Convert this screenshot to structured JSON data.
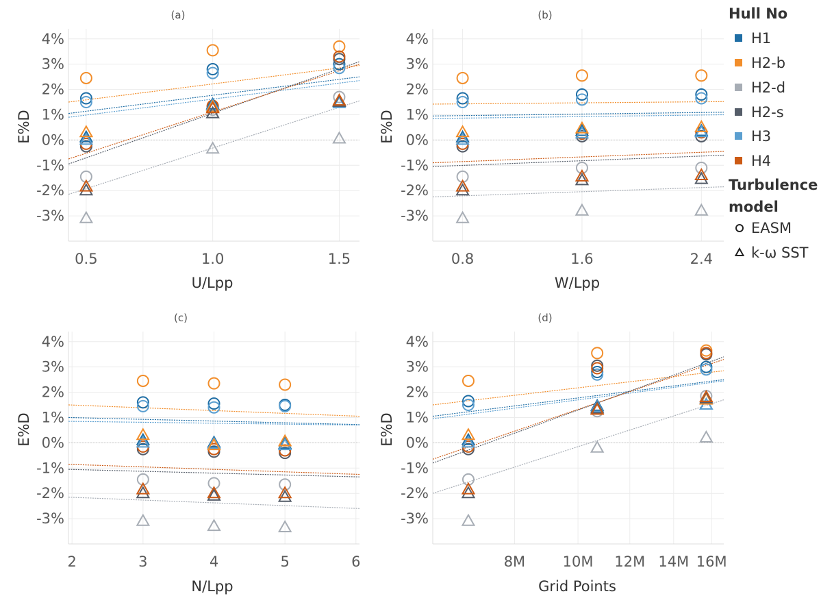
{
  "legend": {
    "hull_title": "Hull No",
    "turbulence_title_lines": [
      "Turbulence",
      "model"
    ],
    "hulls": [
      {
        "name": "H1",
        "color": "#1f6ea5"
      },
      {
        "name": "H2-b",
        "color": "#f28e2b"
      },
      {
        "name": "H2-d",
        "color": "#a7adb5"
      },
      {
        "name": "H2-s",
        "color": "#555d69"
      },
      {
        "name": "H3",
        "color": "#5b9fd0"
      },
      {
        "name": "H4",
        "color": "#cc5a14"
      }
    ],
    "models": [
      {
        "name": "EASM",
        "marker": "circle"
      },
      {
        "name": "k-ω SST",
        "marker": "triangle"
      }
    ]
  },
  "chart_data": [
    {
      "panel": "(a)",
      "type": "scatter",
      "xlabel": "U/Lpp",
      "ylabel": "E%D",
      "x_ticks": [
        0.5,
        1.0,
        1.5
      ],
      "x_tick_labels": [
        "0.5",
        "1.0",
        "1.5"
      ],
      "xlim": [
        0.43,
        1.58
      ],
      "y_ticks": [
        -3,
        -2,
        -1,
        0,
        1,
        2,
        3,
        4
      ],
      "y_tick_labels": [
        "-3%",
        "-2%",
        "-1%",
        "0%",
        "1%",
        "2%",
        "3%",
        "4%"
      ],
      "ylim": [
        -4,
        4.4
      ],
      "series": [
        {
          "hull": "H1",
          "model": "EASM",
          "x": [
            0.5,
            1.0,
            1.5
          ],
          "y": [
            1.65,
            2.8,
            3.0
          ]
        },
        {
          "hull": "H3",
          "model": "EASM",
          "x": [
            0.5,
            1.0,
            1.5
          ],
          "y": [
            1.5,
            2.65,
            2.85
          ]
        },
        {
          "hull": "H2-b",
          "model": "EASM",
          "x": [
            0.5,
            1.0,
            1.5
          ],
          "y": [
            2.45,
            3.55,
            3.7
          ]
        },
        {
          "hull": "H2-d",
          "model": "EASM",
          "x": [
            0.5,
            1.0,
            1.5
          ],
          "y": [
            -1.45,
            1.2,
            1.7
          ]
        },
        {
          "hull": "H2-s",
          "model": "EASM",
          "x": [
            0.5,
            1.0,
            1.5
          ],
          "y": [
            -0.25,
            1.3,
            3.2
          ]
        },
        {
          "hull": "H4",
          "model": "EASM",
          "x": [
            0.5,
            1.0,
            1.5
          ],
          "y": [
            -0.15,
            1.35,
            3.3
          ]
        },
        {
          "hull": "H1",
          "model": "k-ω SST",
          "x": [
            0.5,
            1.0,
            1.5
          ],
          "y": [
            0.1,
            1.4,
            1.5
          ]
        },
        {
          "hull": "H3",
          "model": "k-ω SST",
          "x": [
            0.5,
            1.0,
            1.5
          ],
          "y": [
            0.0,
            1.35,
            1.45
          ]
        },
        {
          "hull": "H2-b",
          "model": "k-ω SST",
          "x": [
            0.5,
            1.0,
            1.5
          ],
          "y": [
            0.3,
            1.3,
            1.55
          ]
        },
        {
          "hull": "H2-d",
          "model": "k-ω SST",
          "x": [
            0.5,
            1.0,
            1.5
          ],
          "y": [
            -3.1,
            -0.35,
            0.05
          ]
        },
        {
          "hull": "H2-s",
          "model": "k-ω SST",
          "x": [
            0.5,
            1.0,
            1.5
          ],
          "y": [
            -2.0,
            1.05,
            1.5
          ]
        },
        {
          "hull": "H4",
          "model": "k-ω SST",
          "x": [
            0.5,
            1.0,
            1.5
          ],
          "y": [
            -1.85,
            1.25,
            1.55
          ]
        }
      ],
      "trend_lines": [
        {
          "hull": "H1",
          "x": [
            0.43,
            1.58
          ],
          "y": [
            1.05,
            2.5
          ]
        },
        {
          "hull": "H3",
          "x": [
            0.43,
            1.58
          ],
          "y": [
            0.9,
            2.35
          ]
        },
        {
          "hull": "H2-b",
          "x": [
            0.43,
            1.58
          ],
          "y": [
            1.5,
            2.95
          ]
        },
        {
          "hull": "H2-d",
          "x": [
            0.43,
            1.58
          ],
          "y": [
            -2.15,
            1.55
          ]
        },
        {
          "hull": "H2-s",
          "x": [
            0.43,
            1.58
          ],
          "y": [
            -0.95,
            3.1
          ]
        },
        {
          "hull": "H4",
          "x": [
            0.43,
            1.58
          ],
          "y": [
            -0.75,
            3.0
          ]
        }
      ]
    },
    {
      "panel": "(b)",
      "type": "scatter",
      "xlabel": "W/Lpp",
      "ylabel": "E%D",
      "x_ticks": [
        0.8,
        1.6,
        2.4
      ],
      "x_tick_labels": [
        "0.8",
        "1.6",
        "2.4"
      ],
      "xlim": [
        0.6,
        2.55
      ],
      "y_ticks": [
        -3,
        -2,
        -1,
        0,
        1,
        2,
        3,
        4
      ],
      "y_tick_labels": [
        "-3%",
        "-2%",
        "-1%",
        "0%",
        "1%",
        "2%",
        "3%",
        "4%"
      ],
      "ylim": [
        -4,
        4.4
      ],
      "series": [
        {
          "hull": "H1",
          "model": "EASM",
          "x": [
            0.8,
            1.6,
            2.4
          ],
          "y": [
            1.65,
            1.8,
            1.8
          ]
        },
        {
          "hull": "H3",
          "model": "EASM",
          "x": [
            0.8,
            1.6,
            2.4
          ],
          "y": [
            1.5,
            1.6,
            1.65
          ]
        },
        {
          "hull": "H2-b",
          "model": "EASM",
          "x": [
            0.8,
            1.6,
            2.4
          ],
          "y": [
            2.45,
            2.55,
            2.55
          ]
        },
        {
          "hull": "H2-d",
          "model": "EASM",
          "x": [
            0.8,
            1.6,
            2.4
          ],
          "y": [
            -1.45,
            -1.1,
            -1.1
          ]
        },
        {
          "hull": "H2-s",
          "model": "EASM",
          "x": [
            0.8,
            1.6,
            2.4
          ],
          "y": [
            -0.25,
            0.15,
            0.15
          ]
        },
        {
          "hull": "H4",
          "model": "EASM",
          "x": [
            0.8,
            1.6,
            2.4
          ],
          "y": [
            -0.15,
            0.25,
            0.3
          ]
        },
        {
          "hull": "H1",
          "model": "k-ω SST",
          "x": [
            0.8,
            1.6,
            2.4
          ],
          "y": [
            0.1,
            0.35,
            0.35
          ]
        },
        {
          "hull": "H3",
          "model": "k-ω SST",
          "x": [
            0.8,
            1.6,
            2.4
          ],
          "y": [
            0.0,
            0.25,
            0.3
          ]
        },
        {
          "hull": "H2-b",
          "model": "k-ω SST",
          "x": [
            0.8,
            1.6,
            2.4
          ],
          "y": [
            0.3,
            0.45,
            0.5
          ]
        },
        {
          "hull": "H2-d",
          "model": "k-ω SST",
          "x": [
            0.8,
            1.6,
            2.4
          ],
          "y": [
            -3.1,
            -2.8,
            -2.8
          ]
        },
        {
          "hull": "H2-s",
          "model": "k-ω SST",
          "x": [
            0.8,
            1.6,
            2.4
          ],
          "y": [
            -2.0,
            -1.6,
            -1.55
          ]
        },
        {
          "hull": "H4",
          "model": "k-ω SST",
          "x": [
            0.8,
            1.6,
            2.4
          ],
          "y": [
            -1.85,
            -1.45,
            -1.4
          ]
        }
      ],
      "trend_lines": [
        {
          "hull": "H1",
          "x": [
            0.6,
            2.55
          ],
          "y": [
            0.95,
            1.1
          ]
        },
        {
          "hull": "H3",
          "x": [
            0.6,
            2.55
          ],
          "y": [
            0.85,
            1.0
          ]
        },
        {
          "hull": "H2-b",
          "x": [
            0.6,
            2.55
          ],
          "y": [
            1.42,
            1.52
          ]
        },
        {
          "hull": "H2-d",
          "x": [
            0.6,
            2.55
          ],
          "y": [
            -2.25,
            -1.85
          ]
        },
        {
          "hull": "H2-s",
          "x": [
            0.6,
            2.55
          ],
          "y": [
            -1.05,
            -0.6
          ]
        },
        {
          "hull": "H4",
          "x": [
            0.6,
            2.55
          ],
          "y": [
            -0.9,
            -0.45
          ]
        }
      ]
    },
    {
      "panel": "(c)",
      "type": "scatter",
      "xlabel": "N/Lpp",
      "ylabel": "E%D",
      "x_ticks": [
        2,
        3,
        4,
        5,
        6
      ],
      "x_tick_labels": [
        "2",
        "3",
        "4",
        "5",
        "6"
      ],
      "xlim": [
        1.95,
        6.05
      ],
      "y_ticks": [
        -3,
        -2,
        -1,
        0,
        1,
        2,
        3,
        4
      ],
      "y_tick_labels": [
        "-3%",
        "-2%",
        "-1%",
        "0%",
        "1%",
        "2%",
        "3%",
        "4%"
      ],
      "ylim": [
        -4,
        4.4
      ],
      "series": [
        {
          "hull": "H1",
          "model": "EASM",
          "x": [
            3,
            4,
            5
          ],
          "y": [
            1.6,
            1.55,
            1.5
          ]
        },
        {
          "hull": "H3",
          "model": "EASM",
          "x": [
            3,
            4,
            5
          ],
          "y": [
            1.45,
            1.4,
            1.45
          ]
        },
        {
          "hull": "H2-b",
          "model": "EASM",
          "x": [
            3,
            4,
            5
          ],
          "y": [
            2.45,
            2.35,
            2.3
          ]
        },
        {
          "hull": "H2-d",
          "model": "EASM",
          "x": [
            3,
            4,
            5
          ],
          "y": [
            -1.45,
            -1.6,
            -1.65
          ]
        },
        {
          "hull": "H2-s",
          "model": "EASM",
          "x": [
            3,
            4,
            5
          ],
          "y": [
            -0.25,
            -0.35,
            -0.4
          ]
        },
        {
          "hull": "H4",
          "model": "EASM",
          "x": [
            3,
            4,
            5
          ],
          "y": [
            -0.15,
            -0.25,
            -0.3
          ]
        },
        {
          "hull": "H1",
          "model": "k-ω SST",
          "x": [
            3,
            4,
            5
          ],
          "y": [
            0.1,
            0.0,
            -0.05
          ]
        },
        {
          "hull": "H3",
          "model": "k-ω SST",
          "x": [
            3,
            4,
            5
          ],
          "y": [
            0.0,
            -0.05,
            -0.1
          ]
        },
        {
          "hull": "H2-b",
          "model": "k-ω SST",
          "x": [
            3,
            4,
            5
          ],
          "y": [
            0.3,
            -0.1,
            0.05
          ]
        },
        {
          "hull": "H2-d",
          "model": "k-ω SST",
          "x": [
            3,
            4,
            5
          ],
          "y": [
            -3.1,
            -3.3,
            -3.35
          ]
        },
        {
          "hull": "H2-s",
          "model": "k-ω SST",
          "x": [
            3,
            4,
            5
          ],
          "y": [
            -2.0,
            -2.1,
            -2.15
          ]
        },
        {
          "hull": "H4",
          "model": "k-ω SST",
          "x": [
            3,
            4,
            5
          ],
          "y": [
            -1.85,
            -2.0,
            -2.0
          ]
        }
      ],
      "trend_lines": [
        {
          "hull": "H1",
          "x": [
            1.95,
            6.05
          ],
          "y": [
            1.0,
            0.72
          ]
        },
        {
          "hull": "H3",
          "x": [
            1.95,
            6.05
          ],
          "y": [
            0.85,
            0.7
          ]
        },
        {
          "hull": "H2-b",
          "x": [
            1.95,
            6.05
          ],
          "y": [
            1.5,
            1.05
          ]
        },
        {
          "hull": "H2-d",
          "x": [
            1.95,
            6.05
          ],
          "y": [
            -2.15,
            -2.6
          ]
        },
        {
          "hull": "H2-s",
          "x": [
            1.95,
            6.05
          ],
          "y": [
            -1.05,
            -1.35
          ]
        },
        {
          "hull": "H4",
          "x": [
            1.95,
            6.05
          ],
          "y": [
            -0.85,
            -1.25
          ]
        }
      ]
    },
    {
      "panel": "(d)",
      "type": "scatter",
      "xlabel": "Grid Points",
      "ylabel": "E%D",
      "x_scale": "log",
      "x_ticks": [
        8000000,
        10000000,
        12000000,
        14000000,
        16000000
      ],
      "x_tick_labels": [
        "8M",
        "10M",
        "12M",
        "14M",
        "16M"
      ],
      "xlim": [
        6000000,
        16700000
      ],
      "y_ticks": [
        -3,
        -2,
        -1,
        0,
        1,
        2,
        3,
        4
      ],
      "y_tick_labels": [
        "-3%",
        "-2%",
        "-1%",
        "0%",
        "1%",
        "2%",
        "3%",
        "4%"
      ],
      "ylim": [
        -4,
        4.4
      ],
      "series": [
        {
          "hull": "H1",
          "model": "EASM",
          "x": [
            6800000,
            10700000,
            15700000
          ],
          "y": [
            1.65,
            2.8,
            3.0
          ]
        },
        {
          "hull": "H3",
          "model": "EASM",
          "x": [
            6800000,
            10700000,
            15700000
          ],
          "y": [
            1.5,
            2.7,
            2.9
          ]
        },
        {
          "hull": "H2-b",
          "model": "EASM",
          "x": [
            6800000,
            10700000,
            15700000
          ],
          "y": [
            2.45,
            3.55,
            3.65
          ]
        },
        {
          "hull": "H2-d",
          "model": "EASM",
          "x": [
            6800000,
            10700000,
            15700000
          ],
          "y": [
            -1.45,
            1.25,
            1.85
          ]
        },
        {
          "hull": "H2-s",
          "model": "EASM",
          "x": [
            6800000,
            10700000,
            15700000
          ],
          "y": [
            -0.25,
            3.05,
            3.5
          ]
        },
        {
          "hull": "H4",
          "model": "EASM",
          "x": [
            6800000,
            10700000,
            15700000
          ],
          "y": [
            -0.15,
            2.95,
            3.55
          ]
        },
        {
          "hull": "H1",
          "model": "k-ω SST",
          "x": [
            6800000,
            10700000,
            15700000
          ],
          "y": [
            0.1,
            1.45,
            1.5
          ]
        },
        {
          "hull": "H3",
          "model": "k-ω SST",
          "x": [
            6800000,
            10700000,
            15700000
          ],
          "y": [
            0.0,
            1.4,
            1.5
          ]
        },
        {
          "hull": "H2-b",
          "model": "k-ω SST",
          "x": [
            6800000,
            10700000,
            15700000
          ],
          "y": [
            0.3,
            1.3,
            1.7
          ]
        },
        {
          "hull": "H2-d",
          "model": "k-ω SST",
          "x": [
            6800000,
            10700000,
            15700000
          ],
          "y": [
            -3.1,
            -0.2,
            0.2
          ]
        },
        {
          "hull": "H2-s",
          "model": "k-ω SST",
          "x": [
            6800000,
            10700000,
            15700000
          ],
          "y": [
            -2.0,
            1.35,
            1.75
          ]
        },
        {
          "hull": "H4",
          "model": "k-ω SST",
          "x": [
            6800000,
            10700000,
            15700000
          ],
          "y": [
            -1.85,
            1.3,
            1.8
          ]
        }
      ],
      "trend_lines": [
        {
          "hull": "H1",
          "x": [
            6000000,
            16700000
          ],
          "y": [
            1.05,
            2.5
          ]
        },
        {
          "hull": "H3",
          "x": [
            6000000,
            16700000
          ],
          "y": [
            0.95,
            2.45
          ]
        },
        {
          "hull": "H2-b",
          "x": [
            6000000,
            16700000
          ],
          "y": [
            1.5,
            2.85
          ]
        },
        {
          "hull": "H2-d",
          "x": [
            6000000,
            16700000
          ],
          "y": [
            -2.0,
            1.7
          ]
        },
        {
          "hull": "H2-s",
          "x": [
            6000000,
            16700000
          ],
          "y": [
            -0.8,
            3.4
          ]
        },
        {
          "hull": "H4",
          "x": [
            6000000,
            16700000
          ],
          "y": [
            -0.65,
            3.3
          ]
        }
      ]
    }
  ]
}
